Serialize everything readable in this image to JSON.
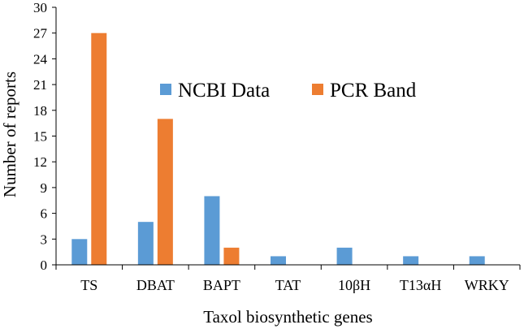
{
  "chart_data": {
    "type": "bar",
    "title": "",
    "xlabel": "Taxol biosynthetic genes",
    "ylabel": "Number of reports",
    "ylim": [
      0,
      30
    ],
    "yticks": [
      0,
      3,
      6,
      9,
      12,
      15,
      18,
      21,
      24,
      27,
      30
    ],
    "grid": false,
    "legend_position": "top-center",
    "categories": [
      "TS",
      "DBAT",
      "BAPT",
      "TAT",
      "10βH",
      "T13αH",
      "WRKY"
    ],
    "series": [
      {
        "name": "NCBI Data",
        "color": "#5B9BD5",
        "values": [
          3,
          5,
          8,
          1,
          2,
          1,
          1
        ]
      },
      {
        "name": "PCR Band",
        "color": "#ED7D31",
        "values": [
          27,
          17,
          2,
          0,
          0,
          0,
          0
        ]
      }
    ]
  }
}
